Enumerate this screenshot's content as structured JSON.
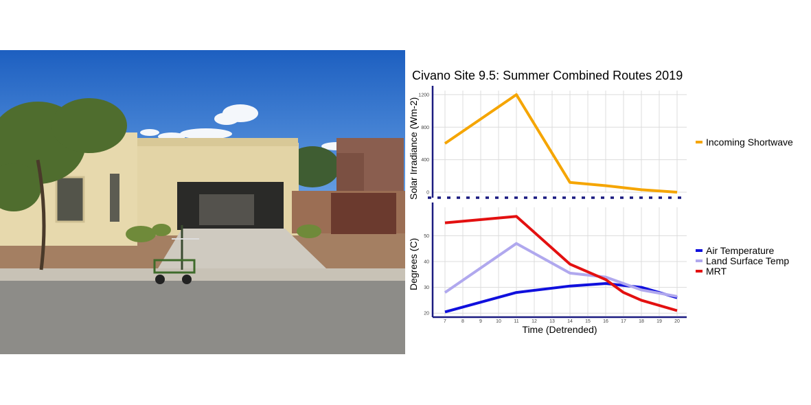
{
  "photo": {
    "description_icon": "photo-house-with-measurement-cart"
  },
  "chart_data": [
    {
      "type": "line",
      "title": "Civano Site 9.5: Summer Combined Routes 2019",
      "xlabel": "",
      "ylabel": "Solar Irradiance (Wm-2)",
      "x": [
        7,
        8,
        9,
        10,
        11,
        12,
        13,
        14,
        15,
        16,
        17,
        18,
        19,
        20
      ],
      "x_tick_labels": [
        "7",
        "8",
        "9",
        "10",
        "11",
        "12",
        "13",
        "14",
        "15",
        "16",
        "17",
        "18",
        "19",
        "20"
      ],
      "y_tick_labels": [
        "0",
        "400",
        "800",
        "1200"
      ],
      "ylim": [
        0,
        1250
      ],
      "grid": true,
      "legend_position": "right",
      "series": [
        {
          "name": "Incoming Shortwave",
          "color": "#F5A500",
          "points": [
            [
              7,
              600
            ],
            [
              11,
              1200
            ],
            [
              14,
              120
            ],
            [
              16,
              80
            ],
            [
              18,
              30
            ],
            [
              20,
              0
            ]
          ]
        }
      ]
    },
    {
      "type": "line",
      "xlabel": "Time (Detrended)",
      "ylabel": "Degrees (C)",
      "x": [
        7,
        8,
        9,
        10,
        11,
        12,
        13,
        14,
        15,
        16,
        17,
        18,
        19,
        20
      ],
      "x_tick_labels": [
        "7",
        "8",
        "9",
        "10",
        "11",
        "12",
        "13",
        "14",
        "15",
        "16",
        "17",
        "18",
        "19",
        "20"
      ],
      "y_tick_labels": [
        "20",
        "30",
        "40",
        "50"
      ],
      "ylim": [
        19,
        61
      ],
      "grid": true,
      "legend_position": "right",
      "series": [
        {
          "name": "Air Temperature",
          "color": "#1010DD",
          "points": [
            [
              7,
              20.5
            ],
            [
              11,
              28
            ],
            [
              14,
              30.5
            ],
            [
              16,
              31.5
            ],
            [
              18,
              30
            ],
            [
              20,
              26
            ]
          ]
        },
        {
          "name": "Land Surface Temp",
          "color": "#B0A8EE",
          "points": [
            [
              7,
              28
            ],
            [
              11,
              47
            ],
            [
              14,
              35.5
            ],
            [
              16,
              34
            ],
            [
              18,
              29
            ],
            [
              20,
              26.5
            ]
          ]
        },
        {
          "name": "MRT",
          "color": "#E31010",
          "points": [
            [
              7,
              55
            ],
            [
              11,
              57.5
            ],
            [
              14,
              39
            ],
            [
              16,
              33
            ],
            [
              17,
              28
            ],
            [
              18,
              25
            ],
            [
              20,
              21
            ]
          ]
        }
      ]
    }
  ]
}
